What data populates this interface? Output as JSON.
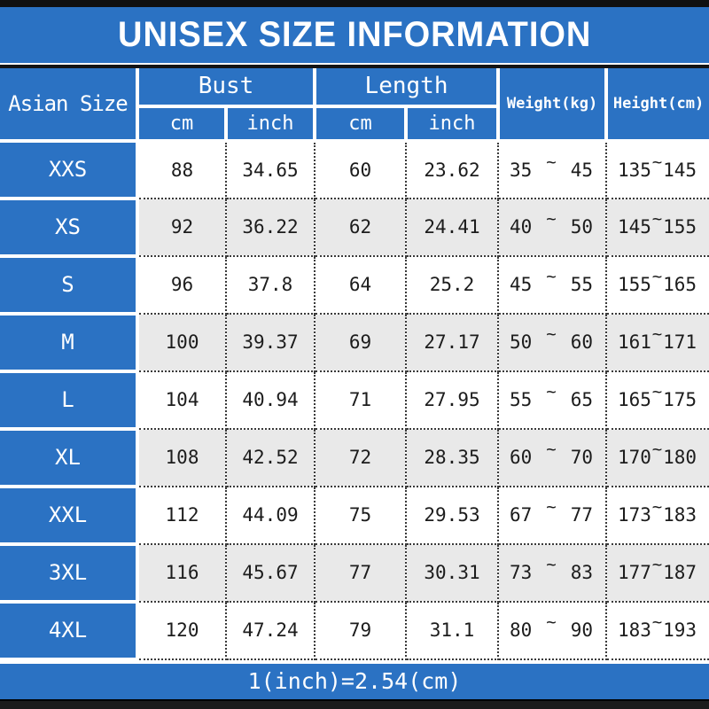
{
  "title": "UNISEX SIZE INFORMATION",
  "footer_note": "1(inch)=2.54(cm)",
  "labels": {
    "tilde": "~"
  },
  "header": {
    "asian_size": "Asian Size",
    "bust": "Bust",
    "length": "Length",
    "weight": "Weight(kg)",
    "height": "Height(cm)",
    "cm": "cm",
    "inch": "inch"
  },
  "rows": [
    {
      "size": "XXS",
      "bust_cm": "88",
      "bust_inch": "34.65",
      "length_cm": "60",
      "length_inch": "23.62",
      "weight_min": "35",
      "weight_max": "45",
      "height_min": "135",
      "height_max": "145"
    },
    {
      "size": "XS",
      "bust_cm": "92",
      "bust_inch": "36.22",
      "length_cm": "62",
      "length_inch": "24.41",
      "weight_min": "40",
      "weight_max": "50",
      "height_min": "145",
      "height_max": "155"
    },
    {
      "size": "S",
      "bust_cm": "96",
      "bust_inch": "37.8",
      "length_cm": "64",
      "length_inch": "25.2",
      "weight_min": "45",
      "weight_max": "55",
      "height_min": "155",
      "height_max": "165"
    },
    {
      "size": "M",
      "bust_cm": "100",
      "bust_inch": "39.37",
      "length_cm": "69",
      "length_inch": "27.17",
      "weight_min": "50",
      "weight_max": "60",
      "height_min": "161",
      "height_max": "171"
    },
    {
      "size": "L",
      "bust_cm": "104",
      "bust_inch": "40.94",
      "length_cm": "71",
      "length_inch": "27.95",
      "weight_min": "55",
      "weight_max": "65",
      "height_min": "165",
      "height_max": "175"
    },
    {
      "size": "XL",
      "bust_cm": "108",
      "bust_inch": "42.52",
      "length_cm": "72",
      "length_inch": "28.35",
      "weight_min": "60",
      "weight_max": "70",
      "height_min": "170",
      "height_max": "180"
    },
    {
      "size": "XXL",
      "bust_cm": "112",
      "bust_inch": "44.09",
      "length_cm": "75",
      "length_inch": "29.53",
      "weight_min": "67",
      "weight_max": "77",
      "height_min": "173",
      "height_max": "183"
    },
    {
      "size": "3XL",
      "bust_cm": "116",
      "bust_inch": "45.67",
      "length_cm": "77",
      "length_inch": "30.31",
      "weight_min": "73",
      "weight_max": "83",
      "height_min": "177",
      "height_max": "187"
    },
    {
      "size": "4XL",
      "bust_cm": "120",
      "bust_inch": "47.24",
      "length_cm": "79",
      "length_inch": "31.1",
      "weight_min": "80",
      "weight_max": "90",
      "height_min": "183",
      "height_max": "193"
    }
  ],
  "colors": {
    "accent_blue": "#2b72c3",
    "row_alt_gray": "#e9e9e9",
    "bar_black": "#101010",
    "text_dark": "#1c1c1c"
  },
  "chart_data": {
    "type": "table",
    "title": "UNISEX SIZE INFORMATION",
    "columns": [
      "Asian Size",
      "Bust cm",
      "Bust inch",
      "Length cm",
      "Length inch",
      "Weight(kg)",
      "Height(cm)"
    ],
    "rows": [
      [
        "XXS",
        88,
        34.65,
        60,
        23.62,
        "35~45",
        "135~145"
      ],
      [
        "XS",
        92,
        36.22,
        62,
        24.41,
        "40~50",
        "145~155"
      ],
      [
        "S",
        96,
        37.8,
        64,
        25.2,
        "45~55",
        "155~165"
      ],
      [
        "M",
        100,
        39.37,
        69,
        27.17,
        "50~60",
        "161~171"
      ],
      [
        "L",
        104,
        40.94,
        71,
        27.95,
        "55~65",
        "165~175"
      ],
      [
        "XL",
        108,
        42.52,
        72,
        28.35,
        "60~70",
        "170~180"
      ],
      [
        "XXL",
        112,
        44.09,
        75,
        29.53,
        "67~77",
        "173~183"
      ],
      [
        "3XL",
        116,
        45.67,
        77,
        30.31,
        "73~83",
        "177~187"
      ],
      [
        "4XL",
        120,
        47.24,
        79,
        31.1,
        "80~90",
        "183~193"
      ]
    ],
    "footnote": "1(inch)=2.54(cm)"
  }
}
